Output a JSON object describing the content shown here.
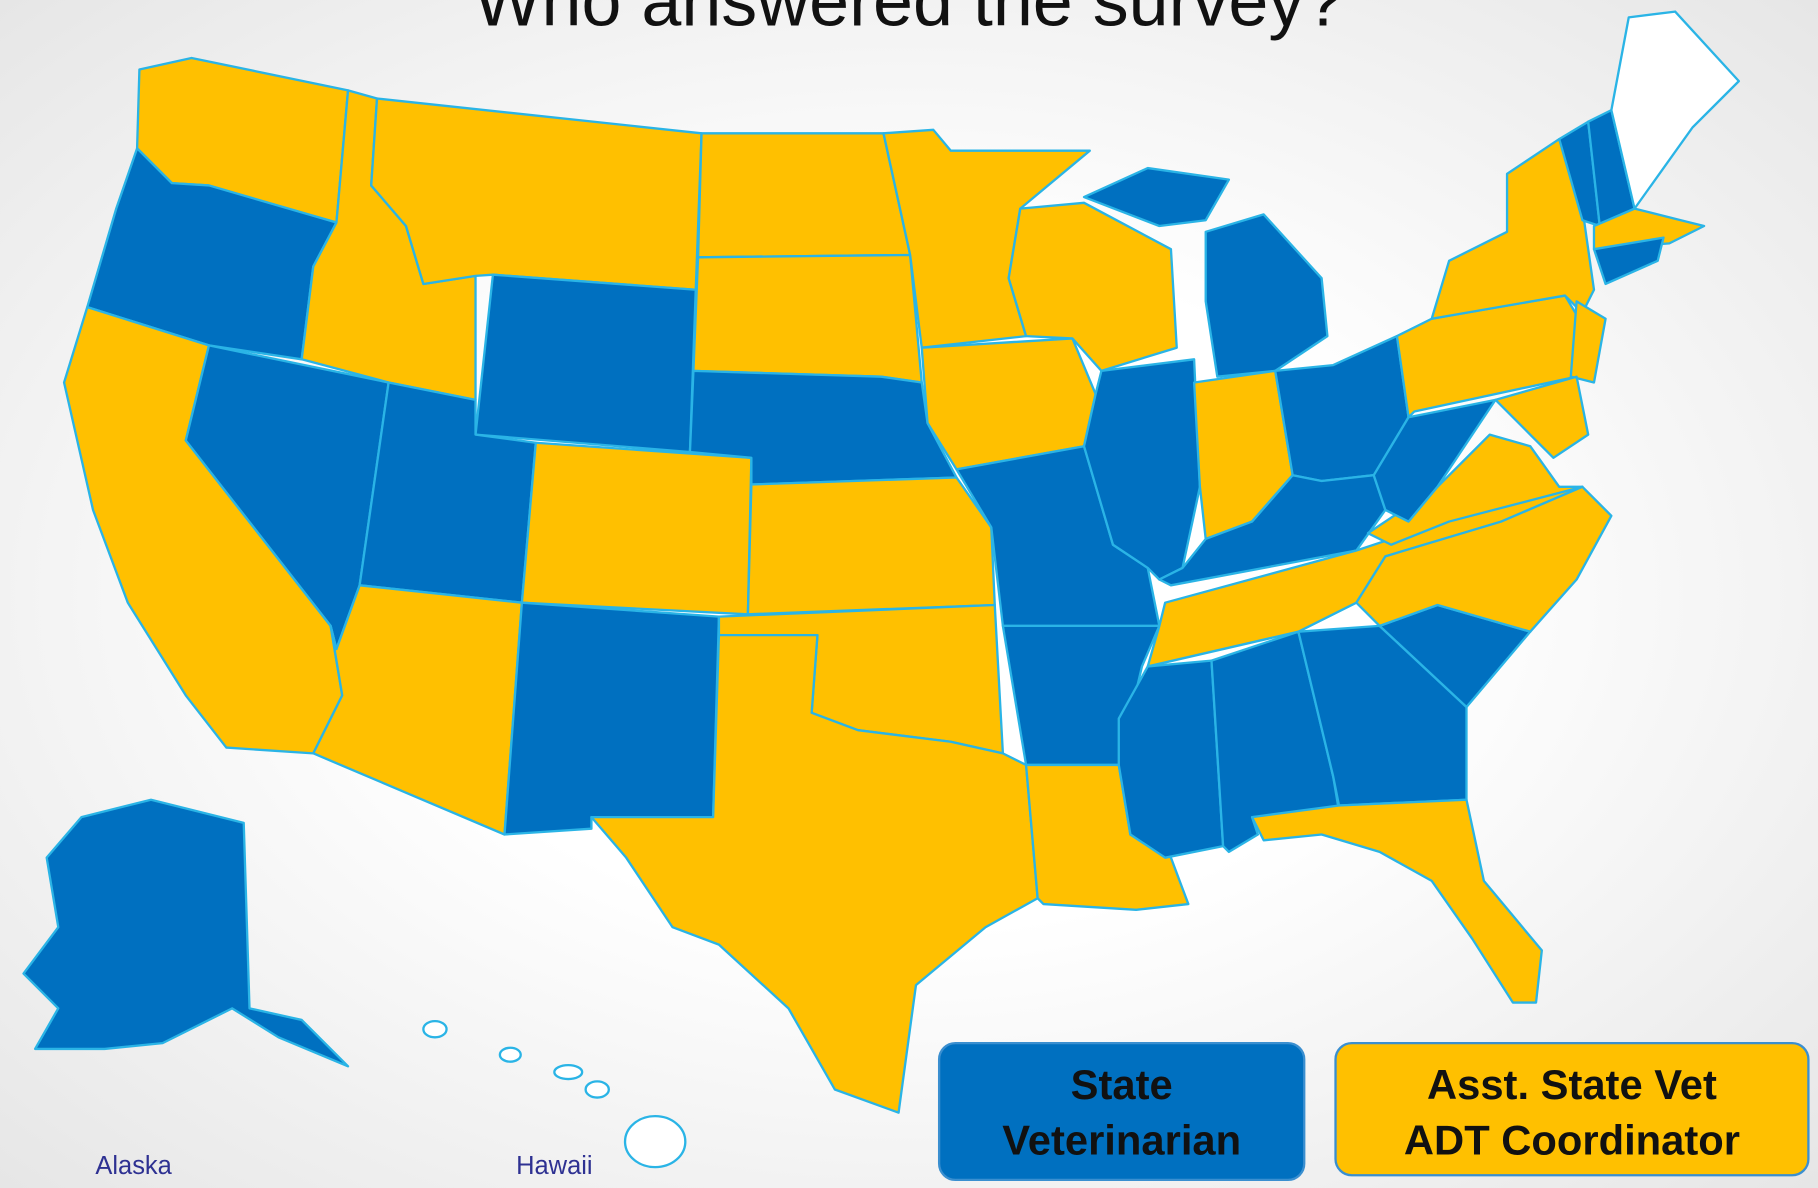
{
  "title": "Who answered the survey?",
  "legend": [
    {
      "lines": [
        "State",
        "Veterinarian"
      ],
      "color": "#0070c0"
    },
    {
      "lines": [
        "Asst. State Vet",
        "ADT Coordinator"
      ],
      "color": "#ffc000"
    }
  ],
  "insets": [
    "Alaska",
    "Hawaii"
  ]
}
